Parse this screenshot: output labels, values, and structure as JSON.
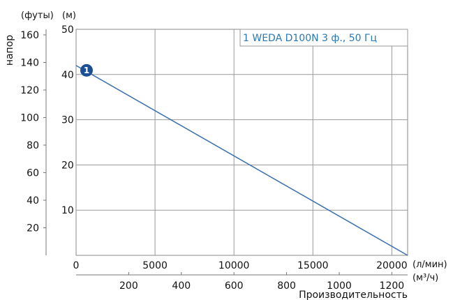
{
  "chart_data": {
    "type": "line",
    "title": "",
    "legend": "1 WEDA D100N 3 ф., 50 Гц",
    "legend_placement": "top-right",
    "grid": true,
    "x_axis_lpm": {
      "label_units": "(л/мин)",
      "ticks": [
        "0",
        "5000",
        "10000",
        "15000",
        "20000"
      ],
      "range": [
        0,
        21000
      ]
    },
    "x_axis_m3h": {
      "label_units": "(м³/ч)",
      "ticks": [
        "200",
        "400",
        "600",
        "800",
        "1000",
        "1200"
      ],
      "values": [
        200,
        400,
        600,
        800,
        1000,
        1200
      ]
    },
    "xlabel": "Производительность",
    "y_axis_m": {
      "unit_label": "(м)",
      "ticks": [
        "10",
        "20",
        "30",
        "40",
        "50"
      ],
      "values": [
        10,
        20,
        30,
        40,
        50
      ],
      "range": [
        0,
        50
      ]
    },
    "y_axis_ft": {
      "unit_label": "(футы)",
      "ticks": [
        "20",
        "40",
        "60",
        "80",
        "100",
        "120",
        "140",
        "160"
      ],
      "values": [
        20,
        40,
        60,
        80,
        100,
        120,
        140,
        160
      ]
    },
    "ylabel": "напор",
    "series": [
      {
        "name": "1 WEDA D100N 3 ф., 50 Гц",
        "marker_label": "1",
        "color": "#3a6fb0",
        "x": [
          0,
          21000
        ],
        "y": [
          42,
          0
        ]
      }
    ]
  }
}
